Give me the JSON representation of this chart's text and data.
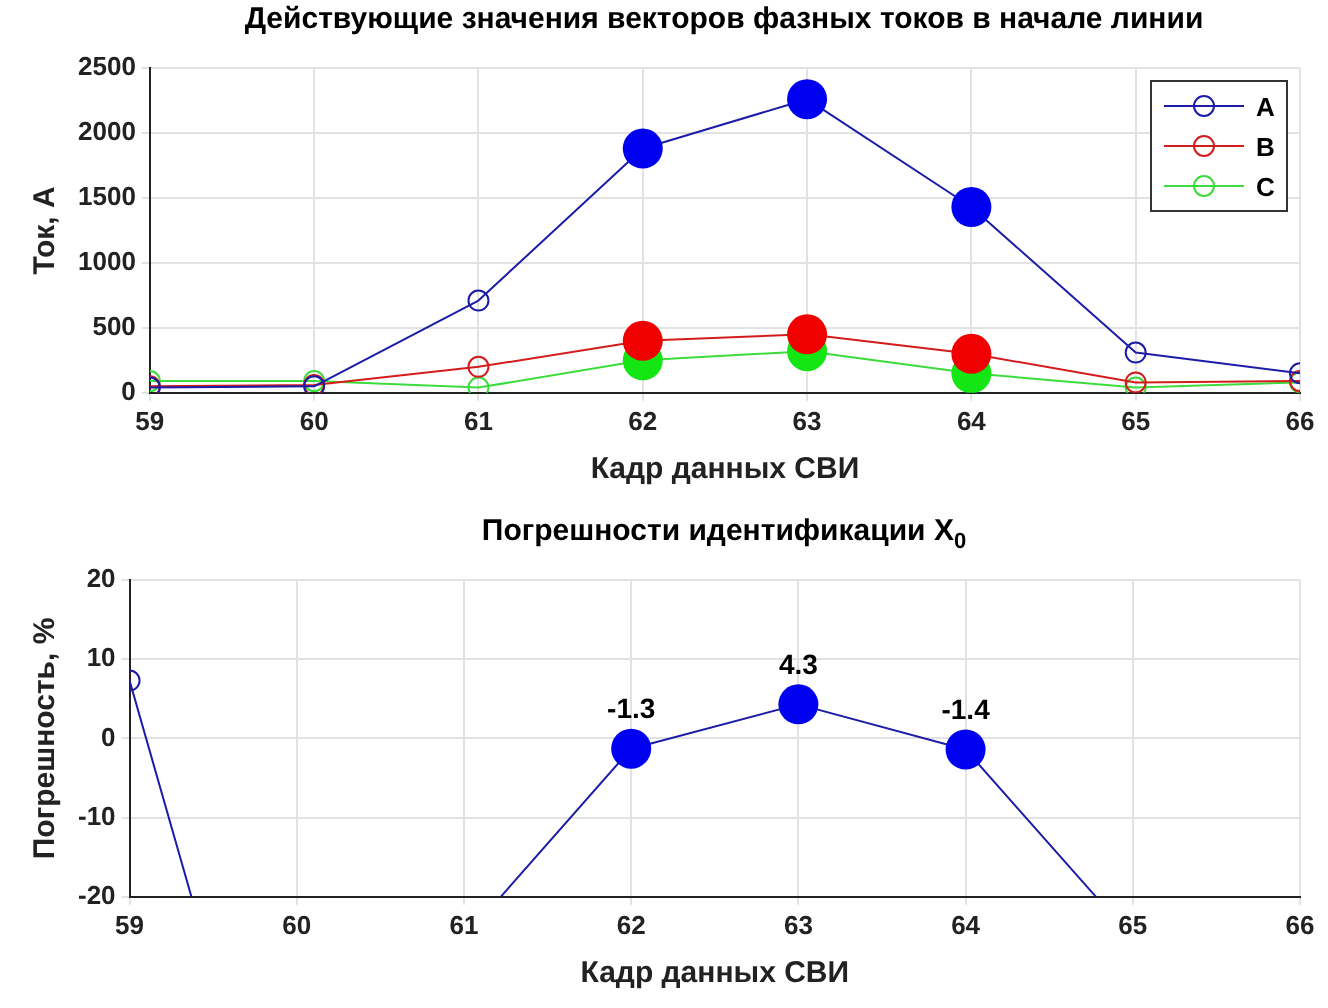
{
  "chart_data": [
    {
      "type": "line",
      "title": "Действующие значения векторов фазных токов в начале линии",
      "xlabel": "Кадр данных СВИ",
      "ylabel": "Ток, А",
      "x": [
        59,
        60,
        61,
        62,
        63,
        64,
        65,
        66
      ],
      "xlim": [
        59,
        66
      ],
      "xticks": [
        59,
        60,
        61,
        62,
        63,
        64,
        65,
        66
      ],
      "ylim": [
        0,
        2500
      ],
      "yticks": [
        0,
        500,
        1000,
        1500,
        2000,
        2500
      ],
      "grid": true,
      "legend": "top right",
      "marker": "circle",
      "series": [
        {
          "name": "A",
          "color": "#1c1ca8",
          "values": [
            40,
            50,
            710,
            1880,
            2260,
            1430,
            310,
            150
          ]
        },
        {
          "name": "B",
          "color": "#d41c1c",
          "values": [
            50,
            60,
            200,
            400,
            450,
            300,
            80,
            90
          ]
        },
        {
          "name": "C",
          "color": "#3cdc3c",
          "values": [
            90,
            90,
            40,
            250,
            320,
            150,
            40,
            80
          ]
        },
        {
          "type": "scatter",
          "color": "#0000f0",
          "x": [
            62,
            63,
            64
          ],
          "values": [
            1880,
            2260,
            1430
          ]
        },
        {
          "type": "scatter",
          "color": "#f00000",
          "x": [
            62,
            63,
            64
          ],
          "values": [
            400,
            450,
            300
          ]
        },
        {
          "type": "scatter",
          "color": "#14e614",
          "x": [
            62,
            63,
            64
          ],
          "values": [
            250,
            320,
            150
          ]
        }
      ]
    },
    {
      "type": "line",
      "title": "Погрешности идентификации X$_{0}$",
      "xlabel": "Кадр данных СВИ",
      "ylabel": "Погрешность, %",
      "xlim": [
        59,
        66
      ],
      "xticks": [
        59,
        60,
        61,
        62,
        63,
        64,
        65,
        66
      ],
      "ylim": [
        -20,
        20
      ],
      "yticks": [
        -20,
        -10,
        0,
        10,
        20
      ],
      "grid": true,
      "series": [
        {
          "color": "#1c1ca8",
          "marker": "none",
          "x": [
            59,
            59.37,
            60,
            61.22,
            62,
            63,
            64,
            64.78
          ],
          "values": [
            7.3,
            -20,
            null,
            -20,
            -1.3,
            4.3,
            -1.4,
            -20
          ]
        },
        {
          "color": "#1c1ca8",
          "marker": "circle",
          "x": [
            59
          ],
          "values": [
            7.3
          ]
        },
        {
          "type": "scatter",
          "color": "#0000f0",
          "x": [
            62,
            63,
            64
          ],
          "values": [
            -1.3,
            4.3,
            -1.4
          ],
          "value_labels": [
            "-1.3",
            "4.3",
            "-1.4"
          ]
        }
      ]
    }
  ]
}
